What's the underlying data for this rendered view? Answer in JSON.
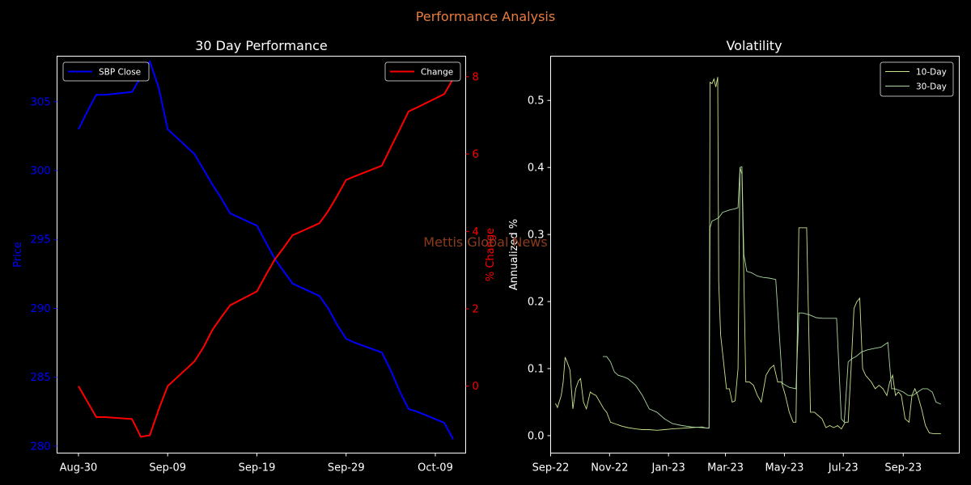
{
  "suptitle": "Performance Analysis",
  "watermark": "Mettis Global News",
  "colors": {
    "background": "#000000",
    "suptitle": "#e87d3e",
    "watermark": "#8b3a1e",
    "price": "#0000ff",
    "change": "#ff0000",
    "vol10": "#c9e38a",
    "vol30": "#a9d6a0",
    "axis": "#ffffff"
  },
  "chart_data": [
    {
      "type": "line",
      "title": "30 Day Performance",
      "xlabel": "",
      "ylabel": "Price",
      "y2label": "% Change",
      "x_ticks": [
        "Aug-30",
        "Sep-09",
        "Sep-19",
        "Sep-29",
        "Oct-09"
      ],
      "y_ticks": [
        280,
        285,
        290,
        295,
        300,
        305
      ],
      "y2_ticks": [
        0,
        2,
        4,
        6,
        8
      ],
      "ylim": [
        279.5,
        308.3
      ],
      "y2lim": [
        -1.73,
        8.53
      ],
      "xlim": [
        -2.4,
        43.4
      ],
      "legend_left": "SBP Close",
      "legend_right": "Change",
      "series": [
        {
          "name": "SBP Close",
          "axis": "left",
          "x": [
            0,
            1,
            2,
            3,
            6,
            7,
            8,
            9,
            10,
            13,
            14,
            15,
            16,
            17,
            20,
            21,
            22,
            23,
            24,
            27,
            28,
            29,
            30,
            31,
            34,
            35,
            36,
            37,
            38,
            41,
            42
          ],
          "values": [
            303.0,
            304.3,
            305.5,
            305.5,
            305.7,
            306.8,
            307.9,
            306.0,
            303.0,
            301.2,
            300.1,
            299.0,
            298.0,
            296.9,
            296.0,
            294.8,
            293.6,
            292.7,
            291.8,
            290.9,
            290.0,
            288.8,
            287.8,
            287.5,
            286.8,
            285.5,
            284.0,
            282.7,
            282.5,
            281.7,
            280.5
          ]
        },
        {
          "name": "Change",
          "axis": "right",
          "x": [
            0,
            1,
            2,
            3,
            6,
            7,
            8,
            9,
            10,
            13,
            14,
            15,
            16,
            17,
            20,
            21,
            22,
            23,
            24,
            27,
            28,
            29,
            30,
            31,
            34,
            35,
            36,
            37,
            38,
            41,
            42
          ],
          "values": [
            0.0,
            -0.4,
            -0.8,
            -0.8,
            -0.85,
            -1.31,
            -1.27,
            -0.6,
            0.0,
            0.64,
            1.0,
            1.45,
            1.78,
            2.09,
            2.45,
            2.87,
            3.27,
            3.58,
            3.9,
            4.21,
            4.53,
            4.92,
            5.33,
            5.43,
            5.7,
            6.17,
            6.63,
            7.1,
            7.21,
            7.55,
            7.95
          ]
        }
      ]
    },
    {
      "type": "line",
      "title": "Volatility",
      "xlabel": "",
      "ylabel": "Annualized %",
      "x_ticks": [
        "Sep-22",
        "Nov-22",
        "Jan-23",
        "Mar-23",
        "May-23",
        "Jul-23",
        "Sep-23"
      ],
      "y_ticks": [
        0.0,
        0.1,
        0.2,
        0.3,
        0.4,
        0.5
      ],
      "ylim": [
        -0.026,
        0.566
      ],
      "legend": [
        "10-Day",
        "30-Day"
      ],
      "series": [
        {
          "name": "10-Day",
          "x": [
            "2022-09-06",
            "2022-09-08",
            "2022-09-12",
            "2022-09-14",
            "2022-09-16",
            "2022-09-18",
            "2022-09-21",
            "2022-09-24",
            "2022-09-27",
            "2022-09-30",
            "2022-10-02",
            "2022-10-05",
            "2022-10-08",
            "2022-10-12",
            "2022-10-15",
            "2022-10-18",
            "2022-10-22",
            "2022-10-26",
            "2022-10-29",
            "2022-11-02",
            "2022-11-06",
            "2022-11-10",
            "2022-11-14",
            "2022-11-20",
            "2022-11-28",
            "2022-12-05",
            "2022-12-12",
            "2022-12-20",
            "2022-12-28",
            "2023-01-05",
            "2023-01-15",
            "2023-01-25",
            "2023-02-05",
            "2023-02-10",
            "2023-02-12",
            "2023-02-13",
            "2023-02-15",
            "2023-02-17",
            "2023-02-19",
            "2023-02-21",
            "2023-02-22",
            "2023-02-24",
            "2023-02-27",
            "2023-03-02",
            "2023-03-05",
            "2023-03-08",
            "2023-03-11",
            "2023-03-14",
            "2023-03-16",
            "2023-03-18",
            "2023-03-22",
            "2023-03-26",
            "2023-03-30",
            "2023-04-03",
            "2023-04-07",
            "2023-04-12",
            "2023-04-16",
            "2023-04-20",
            "2023-04-24",
            "2023-04-28",
            "2023-05-02",
            "2023-05-06",
            "2023-05-10",
            "2023-05-13",
            "2023-05-16",
            "2023-05-20",
            "2023-05-24",
            "2023-05-28",
            "2023-06-01",
            "2023-06-05",
            "2023-06-09",
            "2023-06-13",
            "2023-06-17",
            "2023-06-21",
            "2023-06-25",
            "2023-06-29",
            "2023-07-03",
            "2023-07-06",
            "2023-07-09",
            "2023-07-12",
            "2023-07-15",
            "2023-07-18",
            "2023-07-21",
            "2023-07-24",
            "2023-07-27",
            "2023-07-30",
            "2023-08-03",
            "2023-08-07",
            "2023-08-11",
            "2023-08-15",
            "2023-08-18",
            "2023-08-21",
            "2023-08-24",
            "2023-08-27",
            "2023-08-30",
            "2023-09-03",
            "2023-09-07",
            "2023-09-10",
            "2023-09-13",
            "2023-09-16",
            "2023-09-20",
            "2023-09-24",
            "2023-09-28",
            "2023-10-02",
            "2023-10-06",
            "2023-10-10"
          ],
          "values": [
            0.048,
            0.042,
            0.06,
            0.08,
            0.117,
            0.11,
            0.098,
            0.04,
            0.07,
            0.082,
            0.085,
            0.05,
            0.04,
            0.065,
            0.062,
            0.06,
            0.05,
            0.04,
            0.035,
            0.02,
            0.018,
            0.016,
            0.014,
            0.012,
            0.01,
            0.009,
            0.009,
            0.008,
            0.009,
            0.01,
            0.011,
            0.012,
            0.013,
            0.011,
            0.012,
            0.527,
            0.525,
            0.532,
            0.52,
            0.535,
            0.23,
            0.15,
            0.11,
            0.07,
            0.07,
            0.05,
            0.052,
            0.1,
            0.4,
            0.39,
            0.08,
            0.08,
            0.075,
            0.06,
            0.05,
            0.09,
            0.1,
            0.105,
            0.08,
            0.08,
            0.06,
            0.035,
            0.02,
            0.02,
            0.31,
            0.31,
            0.31,
            0.035,
            0.035,
            0.03,
            0.025,
            0.012,
            0.015,
            0.012,
            0.015,
            0.01,
            0.02,
            0.02,
            0.1,
            0.19,
            0.2,
            0.205,
            0.1,
            0.09,
            0.085,
            0.08,
            0.07,
            0.075,
            0.07,
            0.06,
            0.08,
            0.09,
            0.06,
            0.065,
            0.06,
            0.025,
            0.02,
            0.06,
            0.07,
            0.06,
            0.04,
            0.015,
            0.004,
            0.003,
            0.003,
            0.003
          ]
        },
        {
          "name": "30-Day",
          "x": [
            "2022-10-25",
            "2022-10-29",
            "2022-11-02",
            "2022-11-06",
            "2022-11-10",
            "2022-11-15",
            "2022-11-20",
            "2022-11-28",
            "2022-12-05",
            "2022-12-12",
            "2022-12-20",
            "2022-12-28",
            "2023-01-05",
            "2023-01-15",
            "2023-01-25",
            "2023-02-05",
            "2023-02-12",
            "2023-02-13",
            "2023-02-15",
            "2023-02-18",
            "2023-02-22",
            "2023-02-26",
            "2023-03-02",
            "2023-03-06",
            "2023-03-10",
            "2023-03-14",
            "2023-03-16",
            "2023-03-18",
            "2023-03-20",
            "2023-03-23",
            "2023-03-28",
            "2023-04-03",
            "2023-04-09",
            "2023-04-15",
            "2023-04-22",
            "2023-04-29",
            "2023-05-06",
            "2023-05-13",
            "2023-05-16",
            "2023-05-20",
            "2023-05-27",
            "2023-06-03",
            "2023-06-10",
            "2023-06-17",
            "2023-06-24",
            "2023-06-29",
            "2023-07-02",
            "2023-07-06",
            "2023-07-10",
            "2023-07-14",
            "2023-07-20",
            "2023-07-26",
            "2023-08-02",
            "2023-08-09",
            "2023-08-16",
            "2023-08-20",
            "2023-08-23",
            "2023-08-27",
            "2023-09-01",
            "2023-09-06",
            "2023-09-11",
            "2023-09-16",
            "2023-09-21",
            "2023-09-26",
            "2023-10-01",
            "2023-10-05",
            "2023-10-10"
          ],
          "values": [
            0.118,
            0.118,
            0.11,
            0.095,
            0.09,
            0.088,
            0.085,
            0.075,
            0.06,
            0.04,
            0.035,
            0.025,
            0.018,
            0.015,
            0.013,
            0.012,
            0.011,
            0.31,
            0.32,
            0.322,
            0.325,
            0.333,
            0.335,
            0.337,
            0.338,
            0.34,
            0.4,
            0.401,
            0.27,
            0.245,
            0.243,
            0.238,
            0.236,
            0.235,
            0.233,
            0.078,
            0.072,
            0.07,
            0.183,
            0.183,
            0.18,
            0.176,
            0.175,
            0.175,
            0.175,
            0.025,
            0.02,
            0.11,
            0.115,
            0.118,
            0.125,
            0.128,
            0.13,
            0.132,
            0.139,
            0.07,
            0.07,
            0.068,
            0.065,
            0.06,
            0.06,
            0.065,
            0.07,
            0.07,
            0.065,
            0.05,
            0.047
          ]
        }
      ]
    }
  ]
}
